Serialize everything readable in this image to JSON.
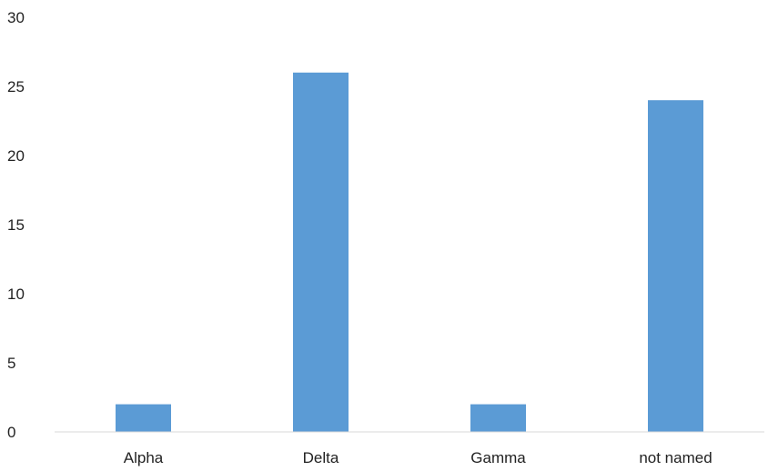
{
  "chart_data": {
    "type": "bar",
    "categories": [
      "Alpha",
      "Delta",
      "Gamma",
      "not named"
    ],
    "values": [
      2,
      26,
      2,
      24
    ],
    "ylim": [
      0,
      30
    ],
    "yticks": [
      0,
      5,
      10,
      15,
      20,
      25,
      30
    ],
    "grid": false,
    "legend": "none",
    "colors": {
      "bar": "#5b9bd5",
      "axis": "#d9d9d9",
      "text": "#222222"
    }
  }
}
